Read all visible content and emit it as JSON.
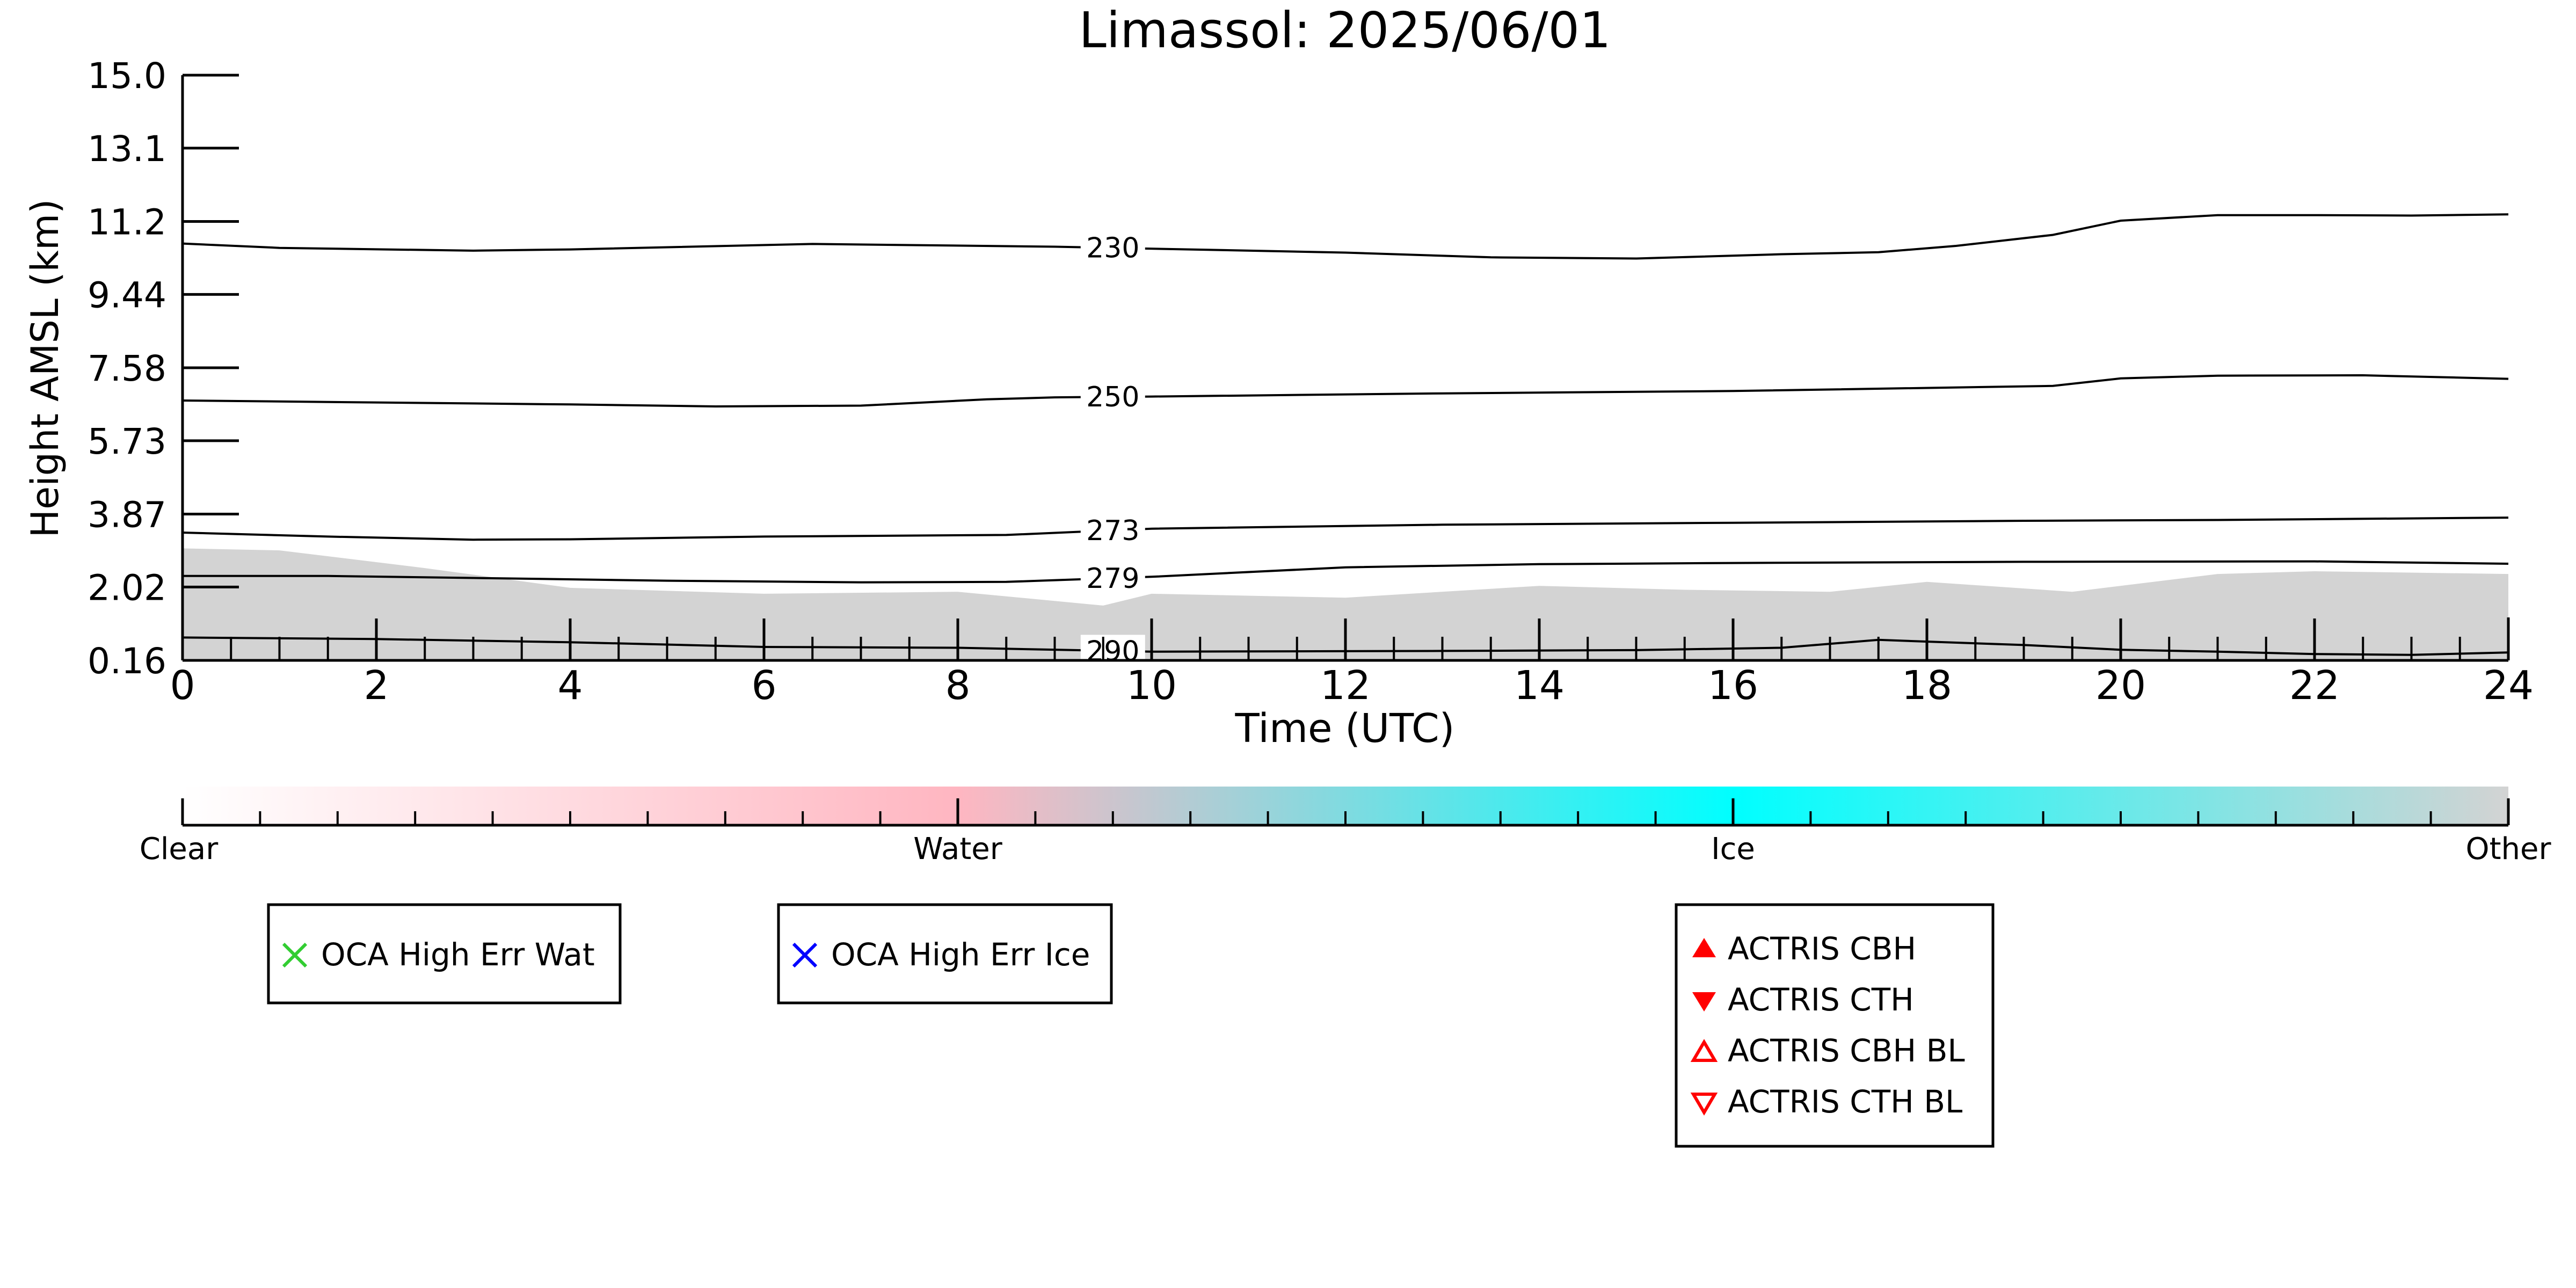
{
  "chart_data": {
    "type": "line",
    "title": "Limassol: 2025/06/01",
    "xlabel": "Time (UTC)",
    "ylabel": "Height AMSL (km)",
    "xlim": [
      0,
      24
    ],
    "ylim": [
      0.16,
      15.0
    ],
    "x_ticks": [
      "0",
      "2",
      "4",
      "6",
      "8",
      "10",
      "12",
      "14",
      "16",
      "18",
      "20",
      "22",
      "24"
    ],
    "y_ticks": [
      "0.16",
      "2.02",
      "3.87",
      "5.73",
      "7.58",
      "9.44",
      "11.2",
      "13.1",
      "15.0"
    ],
    "y_tick_values": [
      0.16,
      2.02,
      3.87,
      5.73,
      7.58,
      9.44,
      11.29,
      13.15,
      15.0
    ],
    "grid": false,
    "temperature_contours": [
      {
        "label": "230",
        "label_x": 9.6,
        "points": [
          [
            0,
            10.73
          ],
          [
            1,
            10.62
          ],
          [
            3,
            10.55
          ],
          [
            4,
            10.58
          ],
          [
            6.5,
            10.72
          ],
          [
            9,
            10.65
          ],
          [
            12,
            10.5
          ],
          [
            13.5,
            10.38
          ],
          [
            15,
            10.35
          ],
          [
            16.5,
            10.46
          ],
          [
            17.5,
            10.51
          ],
          [
            18.3,
            10.67
          ],
          [
            19.3,
            10.95
          ],
          [
            20,
            11.31
          ],
          [
            21,
            11.45
          ],
          [
            22,
            11.45
          ],
          [
            23,
            11.44
          ],
          [
            24,
            11.47
          ]
        ]
      },
      {
        "label": "250",
        "label_x": 9.6,
        "points": [
          [
            0,
            6.75
          ],
          [
            2,
            6.7
          ],
          [
            4,
            6.65
          ],
          [
            5.5,
            6.6
          ],
          [
            7,
            6.62
          ],
          [
            8.3,
            6.78
          ],
          [
            9,
            6.83
          ],
          [
            10,
            6.85
          ],
          [
            13,
            6.93
          ],
          [
            16,
            6.99
          ],
          [
            19.3,
            7.12
          ],
          [
            20,
            7.31
          ],
          [
            21,
            7.38
          ],
          [
            22.5,
            7.39
          ],
          [
            24,
            7.3
          ]
        ]
      },
      {
        "label": "273",
        "label_x": 9.6,
        "points": [
          [
            0,
            3.4
          ],
          [
            1.5,
            3.3
          ],
          [
            3,
            3.22
          ],
          [
            4,
            3.23
          ],
          [
            6,
            3.3
          ],
          [
            8.5,
            3.34
          ],
          [
            10,
            3.5
          ],
          [
            13,
            3.6
          ],
          [
            16,
            3.65
          ],
          [
            19,
            3.7
          ],
          [
            21,
            3.72
          ],
          [
            24,
            3.78
          ]
        ]
      },
      {
        "label": "279",
        "label_x": 9.6,
        "points": [
          [
            0,
            2.3
          ],
          [
            1.5,
            2.3
          ],
          [
            3,
            2.25
          ],
          [
            5,
            2.18
          ],
          [
            7,
            2.14
          ],
          [
            8.5,
            2.15
          ],
          [
            10,
            2.28
          ],
          [
            12,
            2.52
          ],
          [
            14,
            2.6
          ],
          [
            16,
            2.63
          ],
          [
            19,
            2.66
          ],
          [
            22,
            2.67
          ],
          [
            24,
            2.61
          ]
        ]
      },
      {
        "label": "290",
        "label_x": 9.6,
        "points": [
          [
            0,
            0.74
          ],
          [
            2,
            0.7
          ],
          [
            4,
            0.62
          ],
          [
            6,
            0.5
          ],
          [
            8,
            0.48
          ],
          [
            10,
            0.38
          ],
          [
            13,
            0.4
          ],
          [
            15,
            0.42
          ],
          [
            16.5,
            0.48
          ],
          [
            17.5,
            0.68
          ],
          [
            19,
            0.55
          ],
          [
            20,
            0.43
          ],
          [
            21,
            0.38
          ],
          [
            22,
            0.32
          ],
          [
            23,
            0.3
          ],
          [
            24,
            0.36
          ]
        ]
      }
    ],
    "cloud_mask": {
      "category": "Other",
      "color": "#d3d3d3",
      "top_profile": [
        [
          0,
          3.0
        ],
        [
          1,
          2.95
        ],
        [
          2.5,
          2.5
        ],
        [
          4,
          2.0
        ],
        [
          6,
          1.85
        ],
        [
          8,
          1.9
        ],
        [
          9.5,
          1.55
        ],
        [
          10,
          1.85
        ],
        [
          12,
          1.75
        ],
        [
          14,
          2.05
        ],
        [
          15.5,
          1.95
        ],
        [
          17,
          1.9
        ],
        [
          18,
          2.15
        ],
        [
          19.5,
          1.9
        ],
        [
          21,
          2.35
        ],
        [
          22,
          2.42
        ],
        [
          24,
          2.35
        ]
      ]
    },
    "colorbar": {
      "labels": [
        "Clear",
        "Water",
        "Ice",
        "Other"
      ],
      "colors": [
        "#ffffff",
        "#ffb6c1",
        "#00ffff",
        "#d3d3d3"
      ]
    },
    "legends": [
      {
        "entries": [
          {
            "label": "OCA High Err Wat",
            "marker": "x",
            "color": "#32cd32"
          }
        ]
      },
      {
        "entries": [
          {
            "label": "OCA High Err Ice",
            "marker": "x",
            "color": "#0000ff"
          }
        ]
      },
      {
        "entries": [
          {
            "label": "ACTRIS CBH",
            "marker": "triangle-up-filled",
            "color": "#ff0000"
          },
          {
            "label": "ACTRIS CTH",
            "marker": "triangle-down-filled",
            "color": "#ff0000"
          },
          {
            "label": "ACTRIS CBH BL",
            "marker": "triangle-up-open",
            "color": "#ff0000"
          },
          {
            "label": "ACTRIS CTH BL",
            "marker": "triangle-down-open",
            "color": "#ff0000"
          }
        ]
      }
    ]
  }
}
